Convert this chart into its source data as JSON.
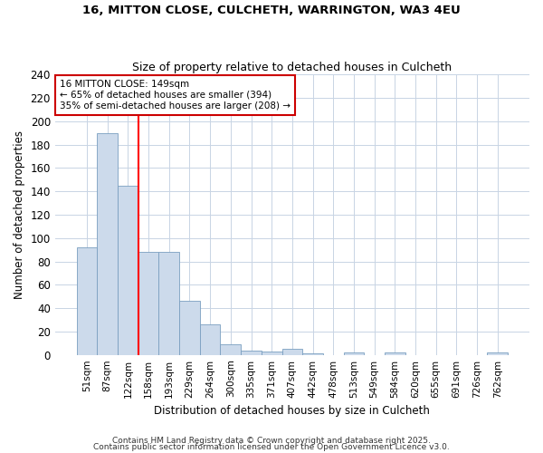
{
  "title": "16, MITTON CLOSE, CULCHETH, WARRINGTON, WA3 4EU",
  "subtitle": "Size of property relative to detached houses in Culcheth",
  "xlabel": "Distribution of detached houses by size in Culcheth",
  "ylabel": "Number of detached properties",
  "bins": [
    "51sqm",
    "87sqm",
    "122sqm",
    "158sqm",
    "193sqm",
    "229sqm",
    "264sqm",
    "300sqm",
    "335sqm",
    "371sqm",
    "407sqm",
    "442sqm",
    "478sqm",
    "513sqm",
    "549sqm",
    "584sqm",
    "620sqm",
    "655sqm",
    "691sqm",
    "726sqm",
    "762sqm"
  ],
  "values": [
    92,
    190,
    145,
    88,
    88,
    46,
    26,
    9,
    4,
    3,
    5,
    1,
    0,
    2,
    0,
    2,
    0,
    0,
    0,
    0,
    2
  ],
  "bar_color": "#ccdaeb",
  "bar_edge_color": "#7a9fc0",
  "red_line_x": 2.5,
  "annotation_text": "16 MITTON CLOSE: 149sqm\n← 65% of detached houses are smaller (394)\n35% of semi-detached houses are larger (208) →",
  "annotation_box_color": "#ffffff",
  "annotation_box_edge": "#cc0000",
  "grid_color": "#c8d4e4",
  "background_color": "#ffffff",
  "plot_bg_color": "#ffffff",
  "ylim": [
    0,
    240
  ],
  "yticks": [
    0,
    20,
    40,
    60,
    80,
    100,
    120,
    140,
    160,
    180,
    200,
    220,
    240
  ],
  "footer1": "Contains HM Land Registry data © Crown copyright and database right 2025.",
  "footer2": "Contains public sector information licensed under the Open Government Licence v3.0."
}
